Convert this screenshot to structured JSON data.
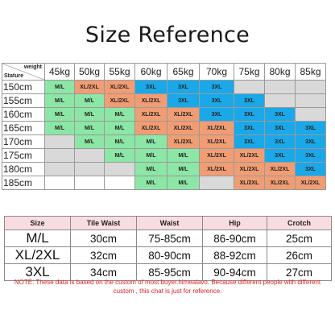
{
  "title": "Size Reference",
  "chart": {
    "corner_weight": "weight",
    "corner_stature": "Stature",
    "weights": [
      "45kg",
      "50kg",
      "55kg",
      "60kg",
      "65kg",
      "70kg",
      "75kg",
      "80kg",
      "85kg"
    ],
    "rows": [
      {
        "stature": "150cm",
        "cells": [
          {
            "t": "M/L",
            "c": "green"
          },
          {
            "t": "XL/2XL",
            "c": "orange"
          },
          {
            "t": "XL/2XL",
            "c": "orange"
          },
          {
            "t": "3XL",
            "c": "blue"
          },
          {
            "t": "3XL",
            "c": "blue"
          },
          {
            "t": "3XL",
            "c": "blue"
          },
          {
            "t": "",
            "c": "gray"
          },
          {
            "t": "",
            "c": "gray"
          },
          {
            "t": "",
            "c": "gray"
          }
        ]
      },
      {
        "stature": "155cm",
        "cells": [
          {
            "t": "M/L",
            "c": "green"
          },
          {
            "t": "M/L",
            "c": "green"
          },
          {
            "t": "XL/2XL",
            "c": "orange"
          },
          {
            "t": "XL/2XL",
            "c": "orange"
          },
          {
            "t": "3XL",
            "c": "blue"
          },
          {
            "t": "3XL",
            "c": "blue"
          },
          {
            "t": "3XL",
            "c": "blue"
          },
          {
            "t": "",
            "c": "gray"
          },
          {
            "t": "",
            "c": "gray"
          }
        ]
      },
      {
        "stature": "160cm",
        "cells": [
          {
            "t": "M/L",
            "c": "green"
          },
          {
            "t": "M/L",
            "c": "green"
          },
          {
            "t": "M/L",
            "c": "green"
          },
          {
            "t": "XL/2XL",
            "c": "orange"
          },
          {
            "t": "XL/2XL",
            "c": "orange"
          },
          {
            "t": "3XL",
            "c": "blue"
          },
          {
            "t": "3XL",
            "c": "blue"
          },
          {
            "t": "3XL",
            "c": "blue"
          },
          {
            "t": "",
            "c": "gray"
          }
        ]
      },
      {
        "stature": "165cm",
        "cells": [
          {
            "t": "M/L",
            "c": "green"
          },
          {
            "t": "M/L",
            "c": "green"
          },
          {
            "t": "M/L",
            "c": "green"
          },
          {
            "t": "XL/2XL",
            "c": "orange"
          },
          {
            "t": "XL/2XL",
            "c": "orange"
          },
          {
            "t": "XL/2XL",
            "c": "orange"
          },
          {
            "t": "3XL",
            "c": "blue"
          },
          {
            "t": "3XL",
            "c": "blue"
          },
          {
            "t": "3XL",
            "c": "blue"
          }
        ]
      },
      {
        "stature": "170cm",
        "cells": [
          {
            "t": "",
            "c": "gray"
          },
          {
            "t": "M/L",
            "c": "green"
          },
          {
            "t": "M/L",
            "c": "green"
          },
          {
            "t": "M/L",
            "c": "green"
          },
          {
            "t": "XL/2XL",
            "c": "orange"
          },
          {
            "t": "XL/2XL",
            "c": "orange"
          },
          {
            "t": "3XL",
            "c": "blue"
          },
          {
            "t": "3XL",
            "c": "blue"
          },
          {
            "t": "3XL",
            "c": "blue"
          }
        ]
      },
      {
        "stature": "175cm",
        "cells": [
          {
            "t": "",
            "c": "gray"
          },
          {
            "t": "",
            "c": "gray"
          },
          {
            "t": "M/L",
            "c": "green"
          },
          {
            "t": "M/L",
            "c": "green"
          },
          {
            "t": "M/L",
            "c": "green"
          },
          {
            "t": "XL/2XL",
            "c": "orange"
          },
          {
            "t": "XL/2XL",
            "c": "orange"
          },
          {
            "t": "3XL",
            "c": "blue"
          },
          {
            "t": "3XL",
            "c": "blue"
          }
        ]
      },
      {
        "stature": "180cm",
        "cells": [
          {
            "t": "",
            "c": "gray"
          },
          {
            "t": "",
            "c": "gray"
          },
          {
            "t": "",
            "c": "gray"
          },
          {
            "t": "M/L",
            "c": "green"
          },
          {
            "t": "M/L",
            "c": "green"
          },
          {
            "t": "XL/2XL",
            "c": "orange"
          },
          {
            "t": "XL/2XL",
            "c": "orange"
          },
          {
            "t": "XL/2XL",
            "c": "orange"
          },
          {
            "t": "3XL",
            "c": "blue"
          }
        ]
      },
      {
        "stature": "185cm",
        "cells": [
          {
            "t": "",
            "c": "white"
          },
          {
            "t": "",
            "c": "white"
          },
          {
            "t": "",
            "c": "white"
          },
          {
            "t": "M/L",
            "c": "green"
          },
          {
            "t": "M/L",
            "c": "green"
          },
          {
            "t": "",
            "c": "gray"
          },
          {
            "t": "XL/2XL",
            "c": "orange"
          },
          {
            "t": "XL/2XL",
            "c": "orange"
          },
          {
            "t": "XL/2XL",
            "c": "orange"
          }
        ]
      }
    ]
  },
  "colors": {
    "green": "#8ce6a6",
    "orange": "#f19d74",
    "blue": "#1aa8e8",
    "gray": "#d9d9d9",
    "header_pink": "#f8dde0",
    "note_red": "#dd2222"
  },
  "reference": {
    "headers": [
      "Size",
      "Tile Waist",
      "Waist",
      "Hip",
      "Crotch"
    ],
    "rows": [
      [
        "M/L",
        "30cm",
        "75-85cm",
        "86-90cm",
        "25cm"
      ],
      [
        "XL/2XL",
        "32cm",
        "80-90cm",
        "88-92cm",
        "26cm"
      ],
      [
        "3XL",
        "34cm",
        "85-95cm",
        "90-94cm",
        "27cm"
      ]
    ]
  },
  "note": "NOTE: These data is based on the custom of most buyer.himealavo. Because different people with different custom , this chat is just for reference."
}
